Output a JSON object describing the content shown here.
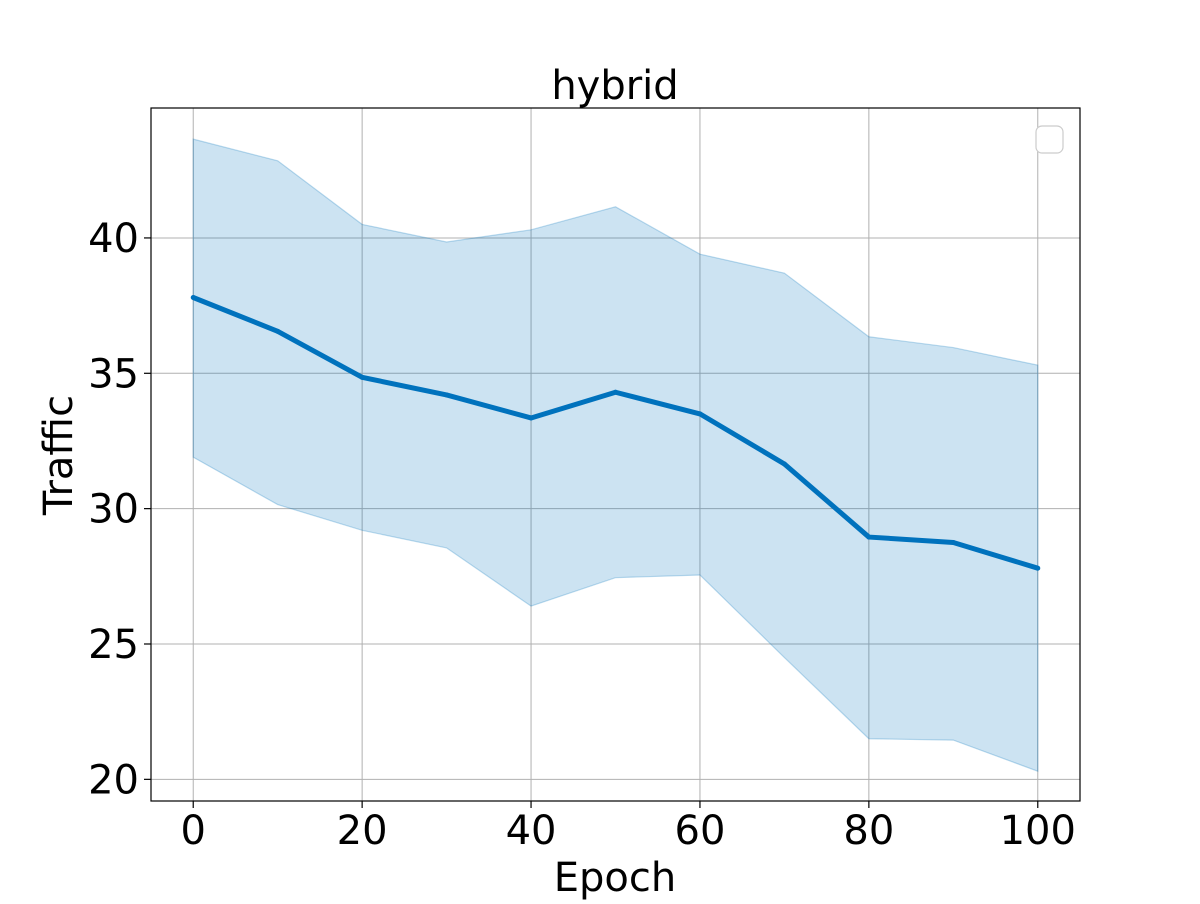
{
  "chart_data": {
    "type": "line",
    "title": "hybrid",
    "xlabel": "Epoch",
    "ylabel": "Traffic",
    "xlim": [
      -5,
      105
    ],
    "ylim": [
      19.2,
      44.8
    ],
    "x_ticks": [
      0,
      20,
      40,
      60,
      80,
      100
    ],
    "y_ticks": [
      20,
      25,
      30,
      35,
      40
    ],
    "grid": true,
    "legend": {
      "placement": "top-right",
      "entries": []
    },
    "series": [
      {
        "x": [
          0,
          10,
          20,
          30,
          40,
          50,
          60,
          70,
          80,
          90,
          100
        ],
        "values": [
          37.8,
          36.55,
          34.85,
          34.2,
          33.35,
          34.3,
          33.5,
          31.65,
          28.95,
          28.75,
          27.8
        ],
        "upper": [
          43.65,
          42.85,
          40.5,
          39.85,
          40.3,
          41.15,
          39.4,
          38.7,
          36.35,
          35.95,
          35.3
        ],
        "lower": [
          31.9,
          30.15,
          29.2,
          28.55,
          26.4,
          27.45,
          27.55,
          24.5,
          21.5,
          21.45,
          20.3
        ],
        "color": "#0072BD",
        "fill_color": "#0072BD",
        "fill_opacity": 0.2
      }
    ]
  }
}
